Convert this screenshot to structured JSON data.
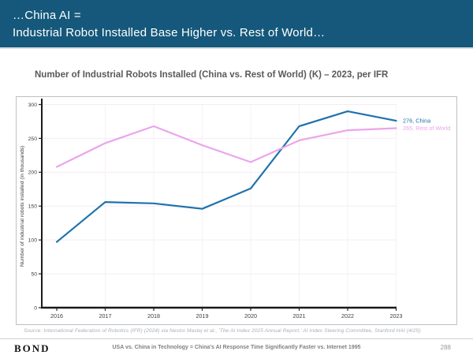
{
  "header": {
    "line1": "…China AI =",
    "line2": "Industrial Robot Installed Base Higher vs. Rest of World…",
    "background_color": "#15587B"
  },
  "chart_data": {
    "type": "line",
    "title": "Number of Industrial Robots Installed (China vs. Rest of World) (K) – 2023, per IFR",
    "categories": [
      "2016",
      "2017",
      "2018",
      "2019",
      "2020",
      "2021",
      "2022",
      "2023"
    ],
    "series": [
      {
        "name": "China",
        "color": "#1F72AD",
        "values": [
          97,
          156,
          154,
          146,
          176,
          268,
          290,
          276
        ],
        "end_label": "276, China"
      },
      {
        "name": "Rest of World",
        "color": "#EBA5EB",
        "values": [
          208,
          243,
          268,
          240,
          215,
          247,
          262,
          265
        ],
        "end_label": "265, Rest of World"
      }
    ],
    "xlabel": "",
    "ylabel": "Number of industrial robots installed (in thousands)",
    "ylim": [
      0,
      300
    ],
    "yticks": [
      0,
      50,
      100,
      150,
      200,
      250,
      300
    ],
    "grid": true,
    "legend_position": "end-of-line-labels"
  },
  "source": {
    "text": "Source: International Federation of Robotics (IFR) (2024) via Nestor Maslej et al., 'The AI Index 2025 Annual Report,' AI Index Steering Committee, Stanford HAI (4/25)"
  },
  "footer": {
    "logo": "BOND",
    "center_text": "USA vs. China in Technology = China's AI Response Time Significantly Faster vs. Internet 1995",
    "page_number": "288"
  }
}
